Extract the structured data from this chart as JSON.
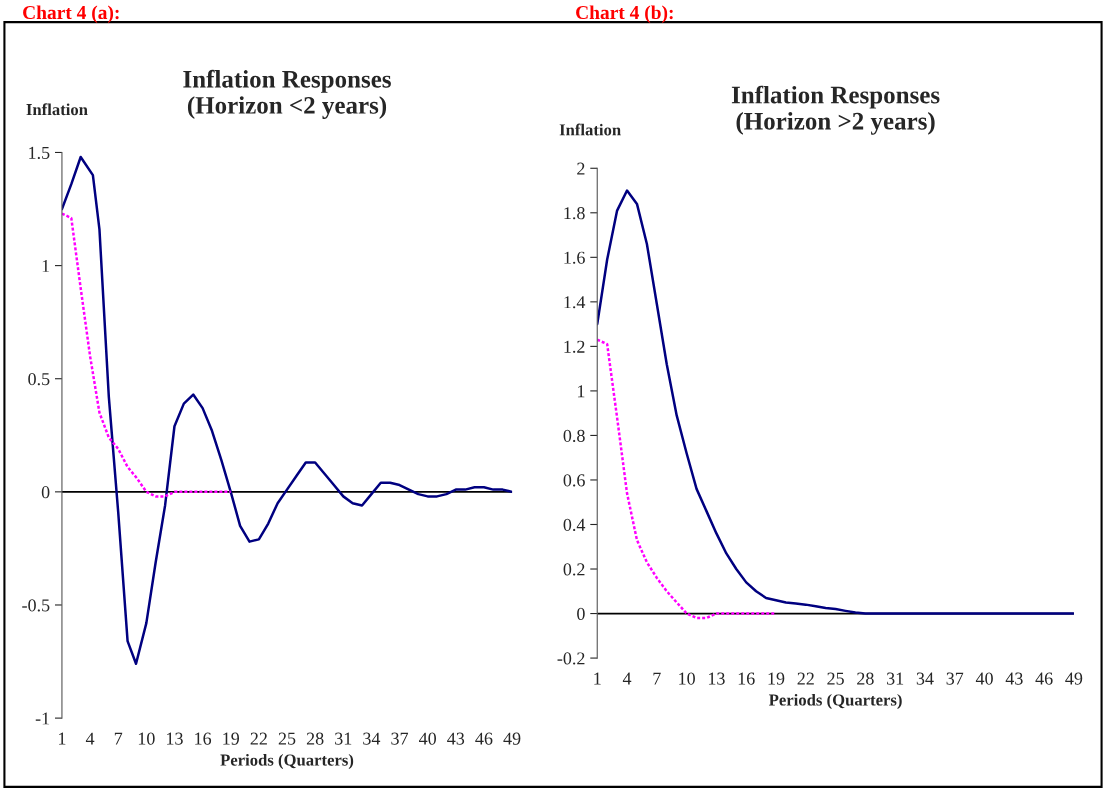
{
  "chart_data": [
    {
      "type": "line",
      "title": "Inflation Responses\n(Horizon <2 years)",
      "ylabel": "Inflation",
      "xlabel": "Periods (Quarters)",
      "annotations": [
        "Chart 4 (a):"
      ],
      "xlim": [
        1,
        49
      ],
      "xticks": [
        1,
        4,
        7,
        10,
        13,
        16,
        19,
        22,
        25,
        28,
        31,
        34,
        37,
        40,
        43,
        46,
        49
      ],
      "ylim": [
        -1,
        1.5
      ],
      "yticks": [
        -1,
        -0.5,
        0,
        0.5,
        1,
        1.5
      ],
      "ref_lines": [
        {
          "axis": "y",
          "value": 0,
          "color": "#000000"
        }
      ],
      "series": [
        {
          "color": "#000080",
          "line_style": "solid",
          "x": [
            1,
            2,
            3,
            4.3,
            5,
            6,
            7,
            8,
            8.9,
            10,
            11,
            12,
            13,
            14,
            15,
            16,
            17,
            18,
            19,
            20,
            21,
            22,
            23,
            24,
            25,
            26,
            27,
            28,
            29,
            30,
            31,
            32,
            33,
            34,
            35,
            36,
            37,
            38,
            39,
            40,
            41,
            42,
            43,
            44,
            45,
            46,
            47,
            48,
            49
          ],
          "values": [
            1.25,
            1.36,
            1.48,
            1.4,
            1.16,
            0.42,
            -0.09,
            -0.66,
            -0.76,
            -0.58,
            -0.31,
            -0.06,
            0.29,
            0.39,
            0.43,
            0.37,
            0.27,
            0.14,
            0.0,
            -0.15,
            -0.22,
            -0.21,
            -0.14,
            -0.05,
            0.01,
            0.07,
            0.13,
            0.13,
            0.08,
            0.03,
            -0.02,
            -0.05,
            -0.06,
            -0.01,
            0.04,
            0.04,
            0.03,
            0.01,
            -0.01,
            -0.02,
            -0.02,
            -0.01,
            0.01,
            0.01,
            0.02,
            0.02,
            0.01,
            0.01,
            0.0
          ]
        },
        {
          "color": "#ff00ff",
          "line_style": "dotted",
          "x": [
            1,
            2,
            3,
            4,
            5,
            6,
            7,
            8,
            9,
            10,
            11,
            12,
            13,
            14,
            15,
            16,
            17,
            18,
            19
          ],
          "values": [
            1.23,
            1.21,
            0.9,
            0.6,
            0.35,
            0.24,
            0.19,
            0.11,
            0.06,
            0.0,
            -0.02,
            -0.02,
            0,
            0,
            0,
            0,
            0,
            0,
            0
          ]
        }
      ]
    },
    {
      "type": "line",
      "title": "Inflation Responses\n(Horizon >2 years)",
      "ylabel": "Inflation",
      "xlabel": "Periods (Quarters)",
      "annotations": [
        "Chart 4 (b):"
      ],
      "xlim": [
        1,
        49
      ],
      "xticks": [
        1,
        4,
        7,
        10,
        13,
        16,
        19,
        22,
        25,
        28,
        31,
        34,
        37,
        40,
        43,
        46,
        49
      ],
      "ylim": [
        -0.2,
        2
      ],
      "yticks": [
        -0.2,
        0,
        0.2,
        0.4,
        0.6,
        0.8,
        1,
        1.2,
        1.4,
        1.6,
        1.8,
        2
      ],
      "ref_lines": [
        {
          "axis": "y",
          "value": 0,
          "color": "#000000"
        }
      ],
      "series": [
        {
          "color": "#000080",
          "line_style": "solid",
          "x": [
            1,
            2,
            3,
            4,
            5,
            6,
            7,
            8,
            9,
            10,
            11,
            12,
            13,
            14,
            15,
            16,
            17,
            18,
            19,
            20,
            21,
            22,
            23,
            24,
            25,
            26,
            27,
            28,
            31,
            34,
            37,
            40,
            43,
            46,
            49
          ],
          "values": [
            1.3,
            1.59,
            1.81,
            1.9,
            1.84,
            1.66,
            1.39,
            1.12,
            0.89,
            0.72,
            0.56,
            0.46,
            0.36,
            0.27,
            0.2,
            0.14,
            0.1,
            0.07,
            0.06,
            0.05,
            0.045,
            0.04,
            0.033,
            0.025,
            0.02,
            0.012,
            0.005,
            0,
            0,
            0,
            0,
            0,
            0,
            0,
            0
          ]
        },
        {
          "color": "#ff00ff",
          "line_style": "dotted",
          "x": [
            1,
            2,
            3,
            4,
            5,
            6,
            7,
            8,
            9,
            10,
            11,
            12,
            13,
            14,
            15,
            16,
            17,
            18,
            19
          ],
          "values": [
            1.23,
            1.21,
            0.88,
            0.54,
            0.33,
            0.23,
            0.16,
            0.1,
            0.05,
            0.0,
            -0.02,
            -0.02,
            0,
            0,
            0,
            0,
            0,
            0,
            0
          ]
        }
      ]
    }
  ]
}
